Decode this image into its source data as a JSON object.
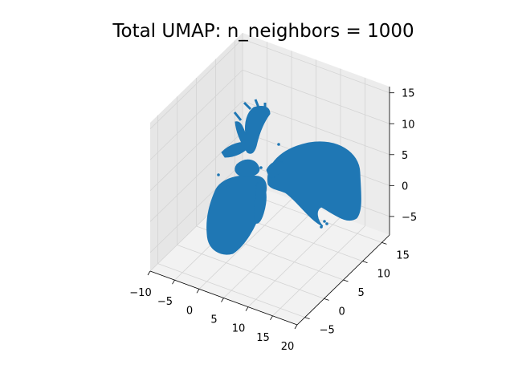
{
  "chart_data": {
    "type": "scatter",
    "projection": "3d",
    "title": "Total UMAP: n_neighbors = 1000",
    "xlabel": "",
    "ylabel": "",
    "zlabel": "",
    "grid": true,
    "marker_color": "#1f77b4",
    "x_ticks": [
      "−10",
      "−5",
      "0",
      "5",
      "10",
      "15",
      "20"
    ],
    "y_ticks": [
      "−5",
      "0",
      "5",
      "10",
      "15"
    ],
    "z_ticks": [
      "−5",
      "0",
      "5",
      "10",
      "15"
    ],
    "xlim": [
      -10,
      20
    ],
    "ylim": [
      -7,
      17
    ],
    "zlim": [
      -8,
      16
    ],
    "series": [
      {
        "values": []
      }
    ]
  }
}
